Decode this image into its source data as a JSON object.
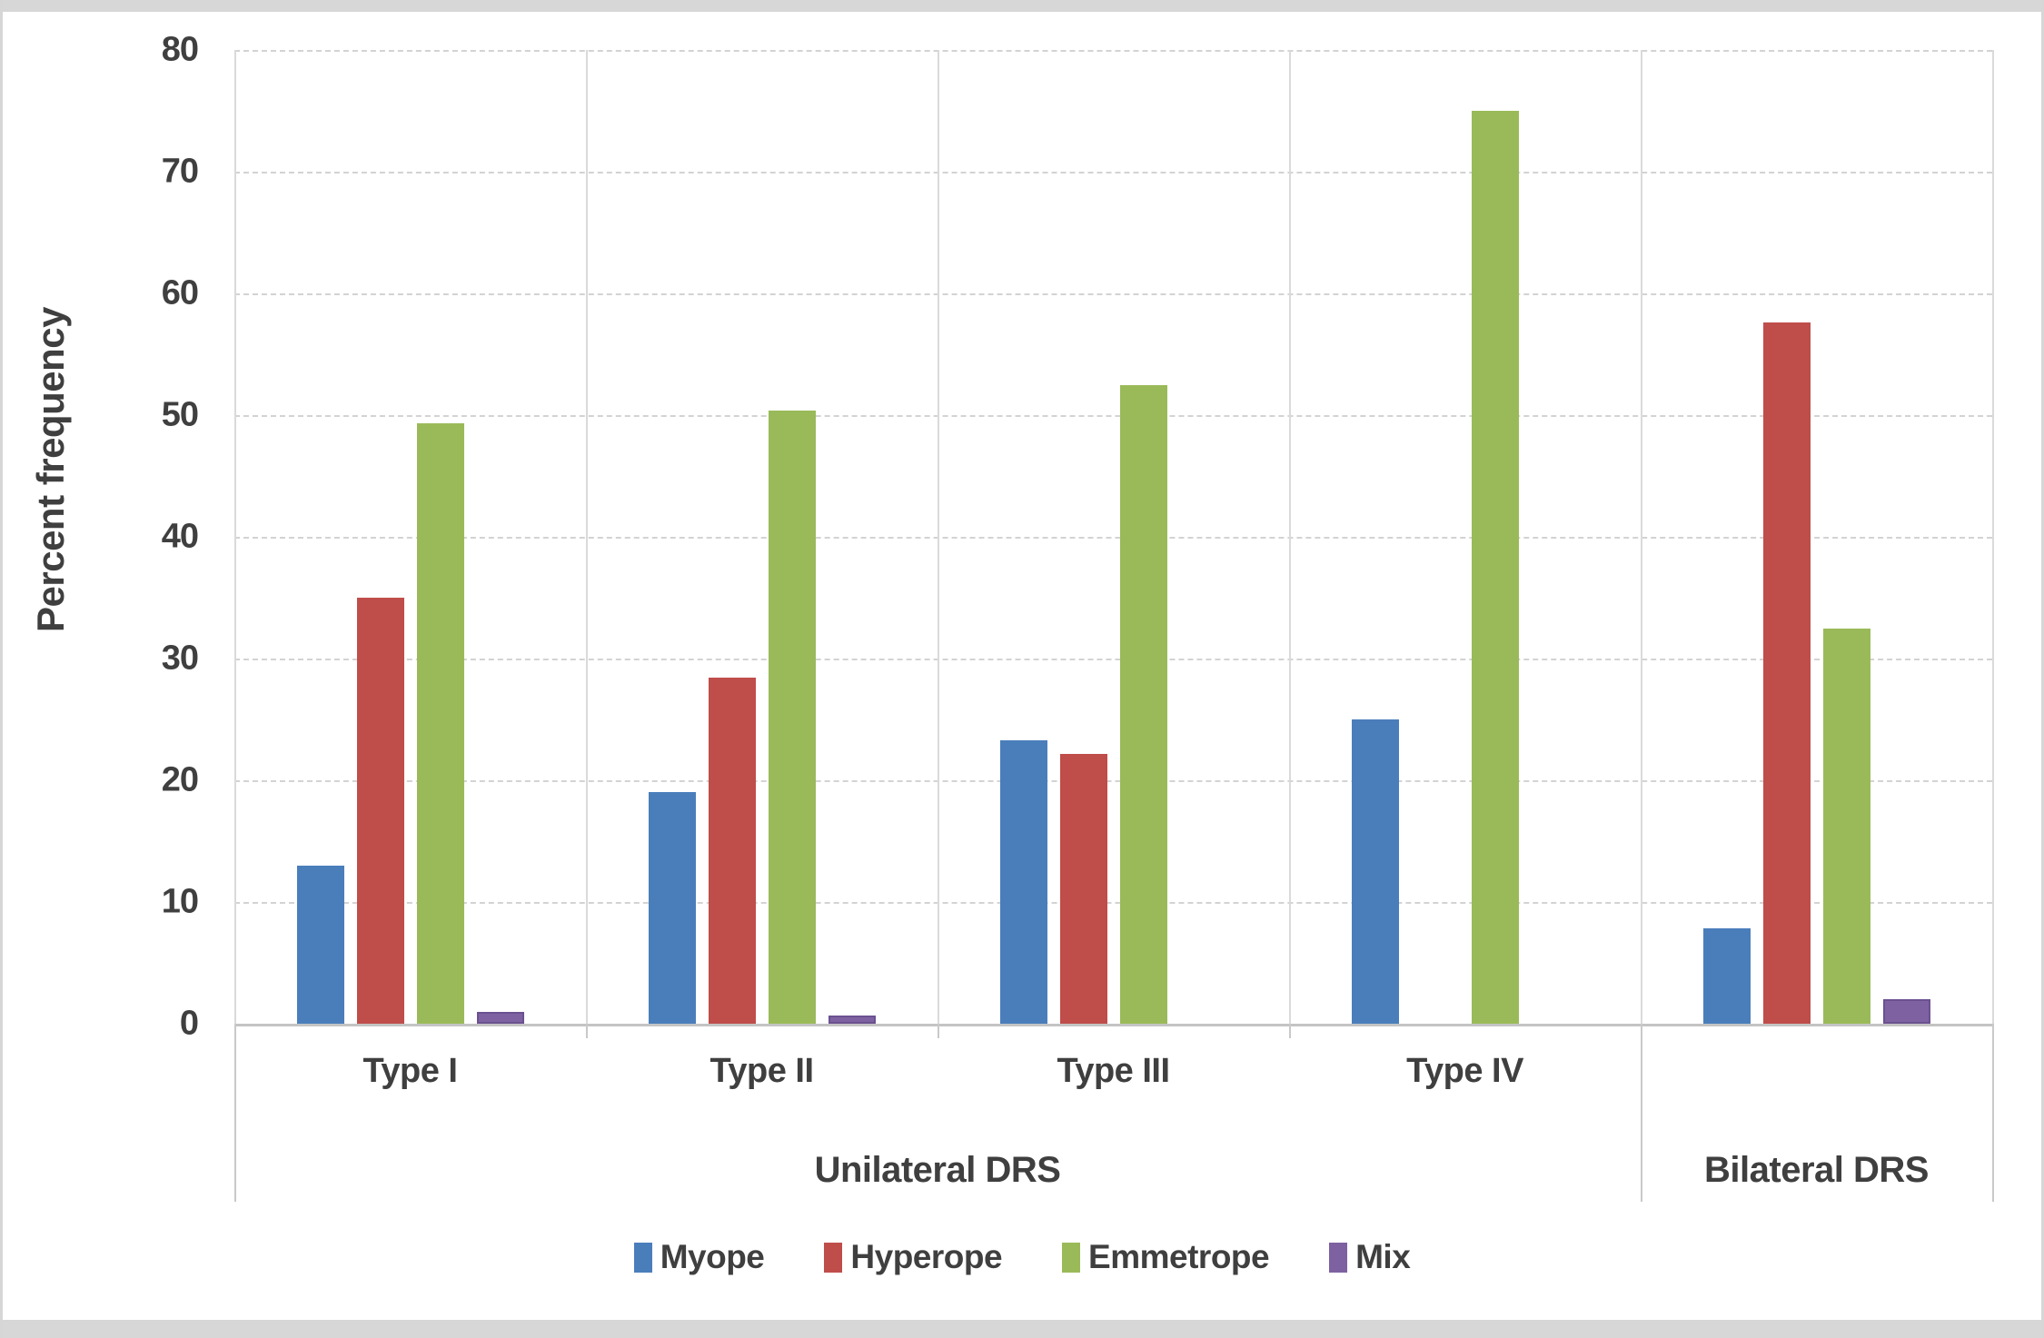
{
  "figure": {
    "y_axis_title": "Percent frequency"
  },
  "chart_data": {
    "type": "bar",
    "title": "",
    "xlabel": "",
    "ylabel": "Percent frequency",
    "ylim": [
      0,
      80
    ],
    "ytick_step": 10,
    "yticks": [
      0,
      10,
      20,
      30,
      40,
      50,
      60,
      70,
      80
    ],
    "grid": true,
    "legend_position": "bottom",
    "categories": [
      "Type I",
      "Type II",
      "Type III",
      "Type IV",
      ""
    ],
    "category_groups": [
      {
        "label": "Unilateral DRS",
        "start": 0,
        "count": 4
      },
      {
        "label": "Bilateral DRS",
        "start": 4,
        "count": 1
      }
    ],
    "series": [
      {
        "name": "Myope",
        "color": "#4A7EBB",
        "values": [
          13,
          19,
          23.3,
          25,
          7.8
        ]
      },
      {
        "name": "Hyperope",
        "color": "#BF4D4A",
        "values": [
          35,
          28.4,
          22.2,
          0,
          57.6
        ]
      },
      {
        "name": "Emmetrope",
        "color": "#9ABA59",
        "values": [
          49.3,
          50.4,
          52.5,
          75,
          32.5
        ]
      },
      {
        "name": "Mix",
        "color": "#7E61A1",
        "values": [
          1,
          0.7,
          0,
          0,
          2
        ]
      }
    ],
    "colors": {
      "mix_border": "#6B5190",
      "gridline": "#D3D3D3",
      "axis_line": "#C4C4C4",
      "text": "#3F3F3F"
    }
  }
}
